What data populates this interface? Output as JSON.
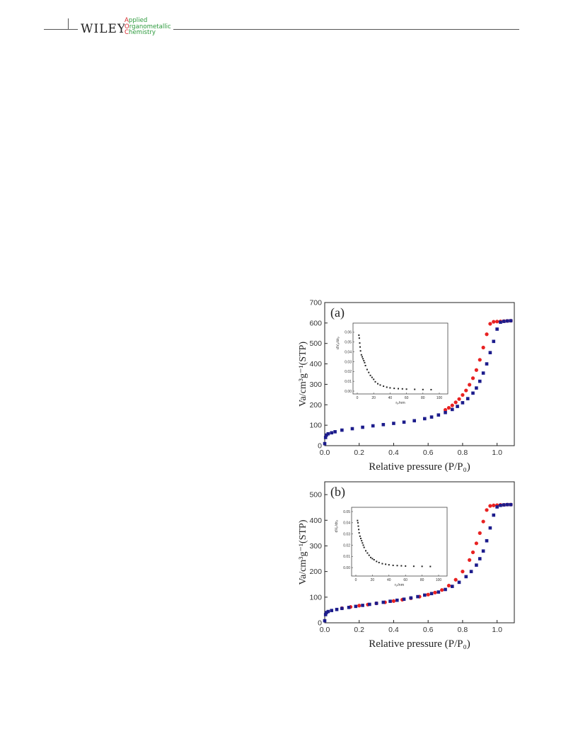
{
  "header": {
    "publisher": "WILEY",
    "journal_lines": [
      {
        "cap": "A",
        "rest": "pplied"
      },
      {
        "cap": "O",
        "rest": "rganometallic"
      },
      {
        "cap": "C",
        "rest": "hemistry"
      }
    ]
  },
  "chart_data": [
    {
      "type": "scatter",
      "panel_label": "(a)",
      "xlabel": "Relative pressure (P/P₀)",
      "ylabel": "Va/cm³g⁻¹(STP)",
      "xlim": [
        0.0,
        1.1
      ],
      "ylim": [
        0,
        700
      ],
      "xticks": [
        "0.0",
        "0.2",
        "0.4",
        "0.6",
        "0.8",
        "1.0"
      ],
      "yticks": [
        "0",
        "100",
        "200",
        "300",
        "400",
        "500",
        "600",
        "700"
      ],
      "series": [
        {
          "role": "adsorption",
          "color": "#1c1c8c",
          "x": [
            0.0,
            0.005,
            0.01,
            0.02,
            0.04,
            0.06,
            0.1,
            0.16,
            0.22,
            0.28,
            0.34,
            0.4,
            0.46,
            0.52,
            0.58,
            0.62,
            0.66,
            0.7,
            0.74,
            0.77,
            0.8,
            0.83,
            0.86,
            0.88,
            0.9,
            0.92,
            0.94,
            0.96,
            0.98,
            1.0,
            1.02,
            1.04,
            1.06,
            1.08
          ],
          "y": [
            10,
            40,
            52,
            58,
            63,
            68,
            76,
            83,
            90,
            97,
            103,
            109,
            115,
            122,
            132,
            140,
            150,
            162,
            177,
            192,
            210,
            230,
            257,
            282,
            315,
            355,
            400,
            455,
            510,
            570,
            604,
            608,
            610,
            611
          ]
        },
        {
          "role": "desorption",
          "color": "#e82222",
          "x": [
            0.7,
            0.72,
            0.74,
            0.76,
            0.78,
            0.8,
            0.82,
            0.84,
            0.86,
            0.88,
            0.9,
            0.92,
            0.94,
            0.96,
            0.98,
            1.0,
            1.02,
            1.04,
            1.06,
            1.08
          ],
          "y": [
            175,
            185,
            197,
            212,
            228,
            248,
            270,
            298,
            330,
            370,
            420,
            480,
            545,
            596,
            606,
            607,
            608,
            609,
            610,
            611
          ]
        }
      ],
      "inset": {
        "xlabel": "rₚ/nm",
        "ylabel": "dVₚ/drₚ",
        "xlim": [
          0,
          100
        ],
        "ylim": [
          0,
          0.065
        ],
        "xticks": [
          "0",
          "20",
          "40",
          "60",
          "80",
          "100"
        ],
        "yticks": [
          "0.00",
          "0.01",
          "0.02",
          "0.03",
          "0.04",
          "0.05",
          "0.06"
        ],
        "x": [
          2,
          2.5,
          3,
          3.5,
          4,
          5,
          6,
          7,
          8,
          9,
          10,
          12,
          14,
          16,
          18,
          20,
          22,
          25,
          28,
          32,
          36,
          40,
          45,
          50,
          55,
          60,
          70,
          80,
          90
        ],
        "y": [
          0.057,
          0.054,
          0.049,
          0.045,
          0.041,
          0.037,
          0.035,
          0.033,
          0.031,
          0.029,
          0.026,
          0.022,
          0.019,
          0.016,
          0.014,
          0.012,
          0.0095,
          0.0075,
          0.0062,
          0.005,
          0.004,
          0.0033,
          0.0028,
          0.0025,
          0.0023,
          0.002,
          0.0018,
          0.0016,
          0.0015
        ]
      }
    },
    {
      "type": "scatter",
      "panel_label": "(b)",
      "xlabel": "Relative pressure (P/P₀)",
      "ylabel": "Va/cm³g⁻¹(STP)",
      "xlim": [
        0.0,
        1.1
      ],
      "ylim": [
        0,
        550
      ],
      "xticks": [
        "0.0",
        "0.2",
        "0.4",
        "0.6",
        "0.8",
        "1.0"
      ],
      "yticks": [
        "0",
        "100",
        "200",
        "300",
        "400",
        "500"
      ],
      "series": [
        {
          "role": "adsorption",
          "color": "#1c1c8c",
          "x": [
            0.0,
            0.005,
            0.01,
            0.02,
            0.04,
            0.07,
            0.1,
            0.14,
            0.18,
            0.22,
            0.26,
            0.3,
            0.34,
            0.38,
            0.42,
            0.46,
            0.5,
            0.54,
            0.58,
            0.62,
            0.66,
            0.7,
            0.74,
            0.78,
            0.82,
            0.85,
            0.88,
            0.9,
            0.92,
            0.94,
            0.96,
            0.98,
            1.0,
            1.02,
            1.04,
            1.06,
            1.08
          ],
          "y": [
            8,
            32,
            40,
            44,
            48,
            52,
            56,
            60,
            64,
            68,
            72,
            76,
            80,
            84,
            88,
            92,
            97,
            102,
            108,
            114,
            120,
            130,
            142,
            158,
            180,
            200,
            225,
            250,
            280,
            320,
            370,
            420,
            452,
            458,
            460,
            461,
            461
          ]
        },
        {
          "role": "desorption",
          "color": "#e82222",
          "x": [
            0.1,
            0.15,
            0.2,
            0.25,
            0.3,
            0.35,
            0.4,
            0.45,
            0.5,
            0.55,
            0.6,
            0.64,
            0.68,
            0.72,
            0.76,
            0.8,
            0.84,
            0.86,
            0.88,
            0.9,
            0.92,
            0.94,
            0.96,
            0.98,
            1.0,
            1.02,
            1.04,
            1.06,
            1.08
          ],
          "y": [
            57,
            62,
            67,
            71,
            76,
            80,
            85,
            90,
            96,
            102,
            110,
            118,
            128,
            145,
            168,
            200,
            245,
            275,
            310,
            350,
            395,
            440,
            456,
            458,
            459,
            460,
            460,
            461,
            461
          ]
        }
      ],
      "inset": {
        "xlabel": "rₚ/nm",
        "ylabel": "dVₚ/drₚ",
        "xlim": [
          0,
          100
        ],
        "ylim": [
          -0.005,
          0.05
        ],
        "xticks": [
          "0",
          "20",
          "40",
          "60",
          "80",
          "100"
        ],
        "yticks": [
          "0.00",
          "0.01",
          "0.02",
          "0.03",
          "0.04",
          "0.05"
        ],
        "x": [
          2,
          2.5,
          3,
          3.5,
          4,
          5,
          6,
          7,
          8,
          9,
          10,
          12,
          14,
          16,
          18,
          20,
          22,
          25,
          28,
          32,
          36,
          40,
          45,
          50,
          55,
          60,
          70,
          80,
          90
        ],
        "y": [
          0.042,
          0.04,
          0.037,
          0.034,
          0.031,
          0.028,
          0.026,
          0.024,
          0.022,
          0.02,
          0.018,
          0.015,
          0.013,
          0.011,
          0.009,
          0.008,
          0.007,
          0.0055,
          0.0045,
          0.0035,
          0.003,
          0.0025,
          0.002,
          0.0018,
          0.0016,
          0.0014,
          0.0012,
          0.0011,
          0.001
        ]
      }
    }
  ]
}
